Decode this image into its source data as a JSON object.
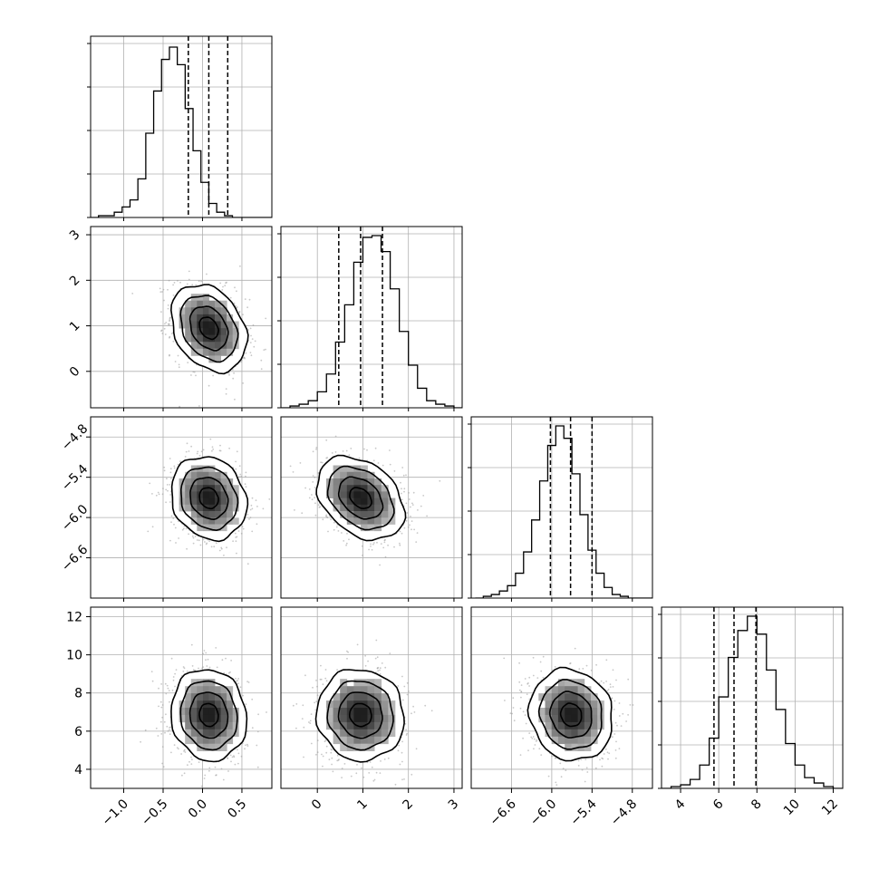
{
  "chart_data": {
    "type": "corner",
    "title": "",
    "colors": {
      "line": "#000000",
      "grid": "#b0b0b0",
      "scatter": "#9a9a9a",
      "background": "#ffffff"
    },
    "grid": true,
    "parameters": [
      {
        "index": 0,
        "range": [
          -1.42,
          0.88
        ],
        "ticks": [
          -1.0,
          -0.5,
          0.0,
          0.5
        ],
        "tick_labels": [
          "−1.0",
          "−0.5",
          "0.0",
          "0.5"
        ],
        "mean": 0.08,
        "sd": 0.24,
        "quantiles": [
          -0.18,
          0.08,
          0.32
        ],
        "hist_bins": {
          "start": -1.42,
          "width": 0.1
        },
        "hist_counts": [
          0,
          1,
          1,
          3,
          6,
          10,
          22,
          48,
          72,
          90,
          97,
          87,
          62,
          38,
          20,
          8,
          3,
          1,
          0,
          0,
          0,
          0,
          0
        ],
        "hist_peak": 0.94
      },
      {
        "index": 1,
        "range": [
          -0.8,
          3.18
        ],
        "ticks": [
          0,
          1,
          2,
          3
        ],
        "tick_labels": [
          "0",
          "1",
          "2",
          "3"
        ],
        "mean": 0.95,
        "sd": 0.48,
        "quantiles": [
          0.47,
          0.95,
          1.43
        ],
        "hist_bins": {
          "start": -0.8,
          "width": 0.2
        },
        "hist_counts": [
          0,
          1,
          2,
          4,
          9,
          19,
          37,
          58,
          82,
          96,
          97,
          88,
          67,
          43,
          24,
          11,
          4,
          2,
          1,
          0
        ],
        "hist_peak": 0.95
      },
      {
        "index": 2,
        "range": [
          -7.2,
          -4.5
        ],
        "ticks": [
          -6.6,
          -6.0,
          -5.4,
          -4.8
        ],
        "tick_labels": [
          "−6.6",
          "−6.0",
          "−5.4",
          "−4.8"
        ],
        "mean": -5.71,
        "sd": 0.31,
        "quantiles": [
          -6.02,
          -5.72,
          -5.4
        ],
        "hist_bins": {
          "start": -7.14,
          "width": 0.12
        },
        "hist_counts": [
          0,
          1,
          2,
          4,
          7,
          14,
          26,
          44,
          66,
          86,
          97,
          90,
          70,
          47,
          27,
          14,
          6,
          2,
          1,
          0,
          0,
          0
        ],
        "hist_peak": 0.95
      },
      {
        "index": 3,
        "range": [
          3.0,
          12.5
        ],
        "ticks": [
          4,
          6,
          8,
          10,
          12
        ],
        "tick_labels": [
          "4",
          "6",
          "8",
          "10",
          "12"
        ],
        "mean": 6.85,
        "sd": 1.2,
        "quantiles": [
          5.75,
          6.8,
          7.95
        ],
        "hist_bins": {
          "start": 3.0,
          "width": 0.5
        },
        "hist_counts": [
          0,
          1,
          2,
          5,
          13,
          28,
          51,
          73,
          88,
          96,
          86,
          66,
          44,
          25,
          13,
          6,
          3,
          1,
          0
        ],
        "hist_peak": 0.95
      }
    ],
    "correlations": [
      [
        1.0,
        -0.28,
        -0.15,
        -0.08
      ],
      [
        -0.28,
        1.0,
        -0.34,
        -0.05
      ],
      [
        -0.15,
        -0.34,
        1.0,
        -0.1
      ],
      [
        -0.08,
        -0.05,
        -0.1,
        1.0
      ]
    ],
    "contour_levels_sigma": [
      0.5,
      1.0,
      1.5,
      2.0
    ],
    "scatter_samples_per_panel": 900
  }
}
